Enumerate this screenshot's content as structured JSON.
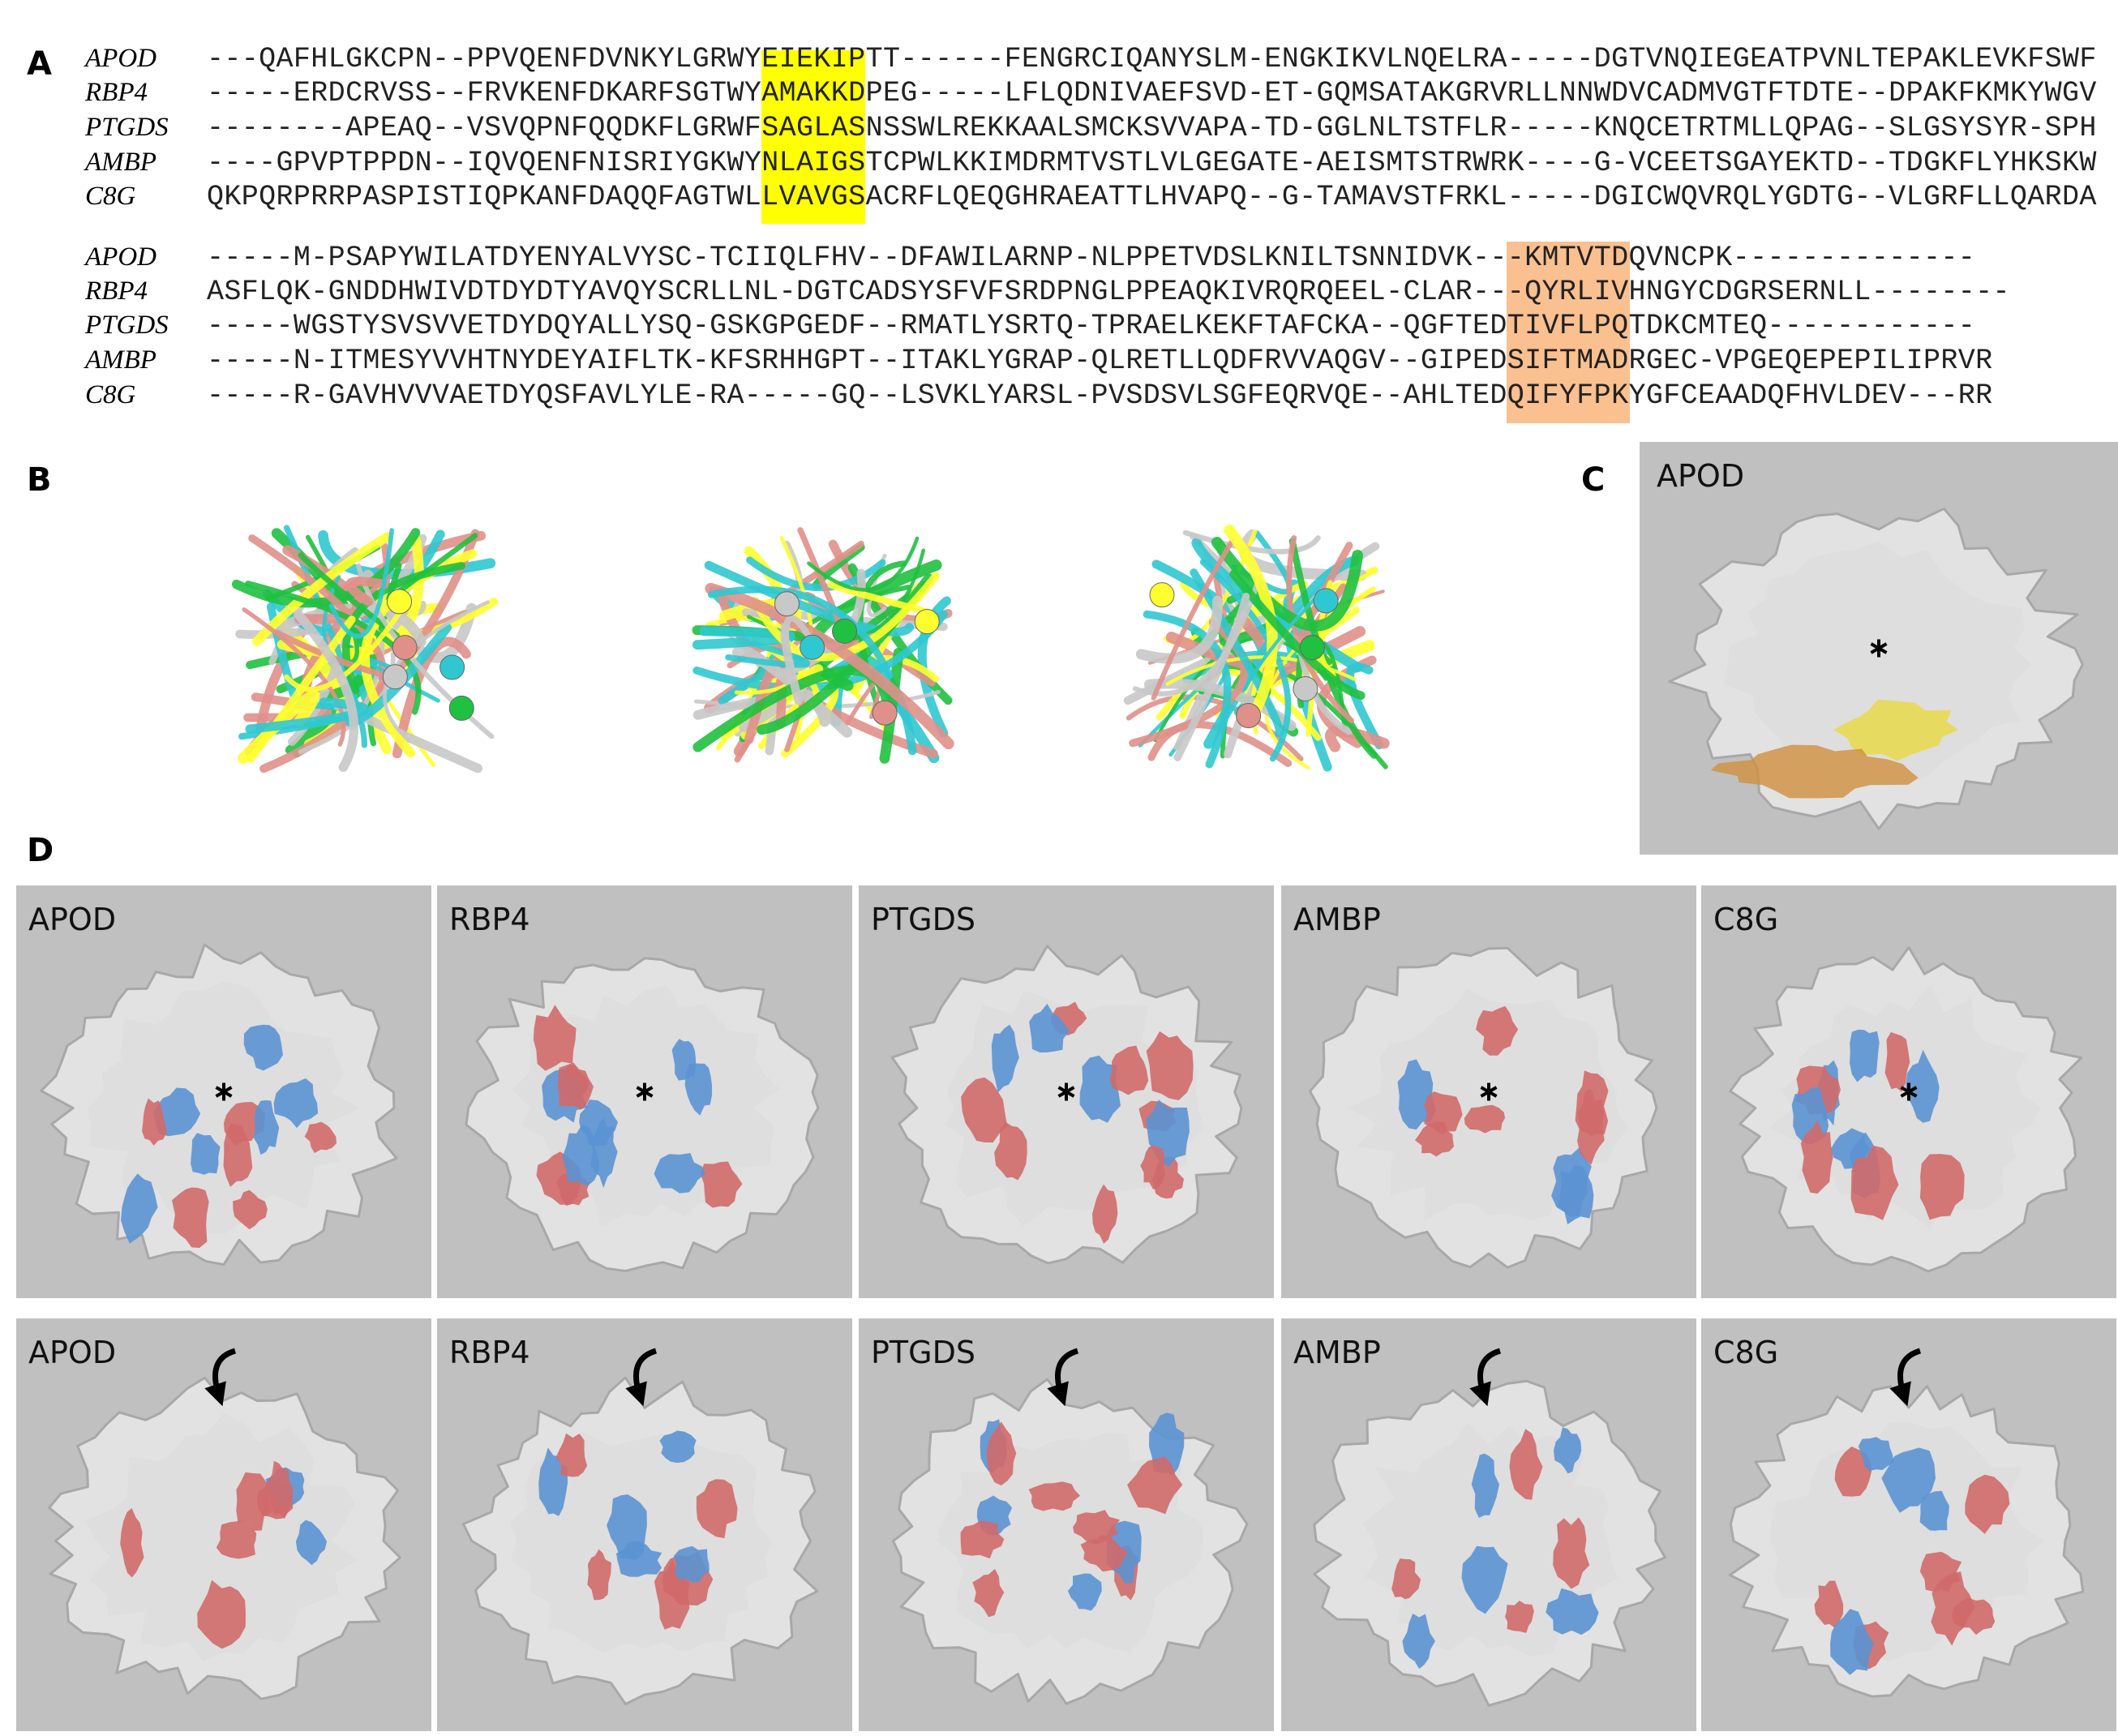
{
  "panel_labels": [
    "A",
    "B",
    "C",
    "D"
  ],
  "alignment": {
    "blocks": [
      {
        "rows": [
          {
            "name": "APOD",
            "sequence": "---QAFHLGKCPN--PPVQENFDVNKYLGRWYEIEKIPTT------FENGRCIQANYSLM-ENGKIKVLNQELRA-----DGTVNQIEGEATPVNLTEPAKLEVKFSWF"
          },
          {
            "name": "RBP4",
            "sequence": "-----ERDCRVSS--FRVKENFDKARFSGTWYAMAKKDPEG-----LFLQDNIVAEFSVD-ET-GQMSATAKGRVRLLNNWDVCADMVGTFTDTE--DPAKFKMKYWGV"
          },
          {
            "name": "PTGDS",
            "sequence": "--------APEAQ--VSVQPNFQQDKFLGRWFSAGLASNSSWLREKKAALSMCKSVVAPA-TD-GGLNLTSTFLR-----KNQCETRTMLLQPAG--SLGSYSYR-SPH"
          },
          {
            "name": "AMBP",
            "sequence": "----GPVPTPPDN--IQVQENFNISRIYGKWYNLAIGSTCPWLKKIMDRMTVSTLVLGEGATE-AEISMTSTRWRK----G-VCEETSGAYEKTD--TDGKFLYHKSKW"
          },
          {
            "name": "C8G",
            "sequence": "QKPQRPRRPASPISTIQPKANFDAQQFAGTWLLVAVGSACRFLQEQGHRAEATTLHVAPQ--G-TAMAVSTFRKL-----DGICWQVRQLYGDTG--VLGRFLLQARDA"
          }
        ]
      },
      {
        "rows": [
          {
            "name": "APOD",
            "sequence": "-----M-PSAPYWILATDYENYALVYSC-TCIIQLFHV--DFAWILARNP-NLPPETVDSLKNILTSNNIDVK---KMTVTDQVNCPK--------------"
          },
          {
            "name": "RBP4",
            "sequence": "ASFLQK-GNDDHWIVDTDYDTYAVQYSCRLLNL-DGTCADSYSFVFSRDPNGLPPEAQKIVRQRQEEL-CLAR---QYRLIVHNGYCDGRSERNLL--------"
          },
          {
            "name": "PTGDS",
            "sequence": "-----WGSTYSVSVVETDYDQYALLYSQ-GSKGPGEDF--RMATLYSRTQ-TPRAELKEKFTAFCKA--QGFTEDTIVFLPQTDKCMTEQ------------"
          },
          {
            "name": "AMBP",
            "sequence": "-----N-ITMESYVVHTNYDEYAIFLTK-KFSRHHGPT--ITAKLYGRAP-QLRETLLQDFRVVAQGV--GIPEDSIFTMADRGEC-VPGEQEPEPILIPRVR"
          },
          {
            "name": "C8G",
            "sequence": "-----R-GAVHVVVAETDYQSFAVLYLE-RA-----GQ--LSVKLYARSL-PVSDSVLSGFEQRVQE--AHLTEDQIFYFPKYGFCEAADQFHVLDEV---RR"
          }
        ]
      }
    ]
  },
  "panel_c": {
    "label": "APOD"
  },
  "panel_d": {
    "rows": [
      {
        "labels": [
          "APOD",
          "RBP4",
          "PTGDS",
          "AMBP",
          "C8G"
        ]
      },
      {
        "labels": [
          "APOD",
          "RBP4",
          "PTGDS",
          "AMBP",
          "C8G"
        ]
      }
    ]
  }
}
